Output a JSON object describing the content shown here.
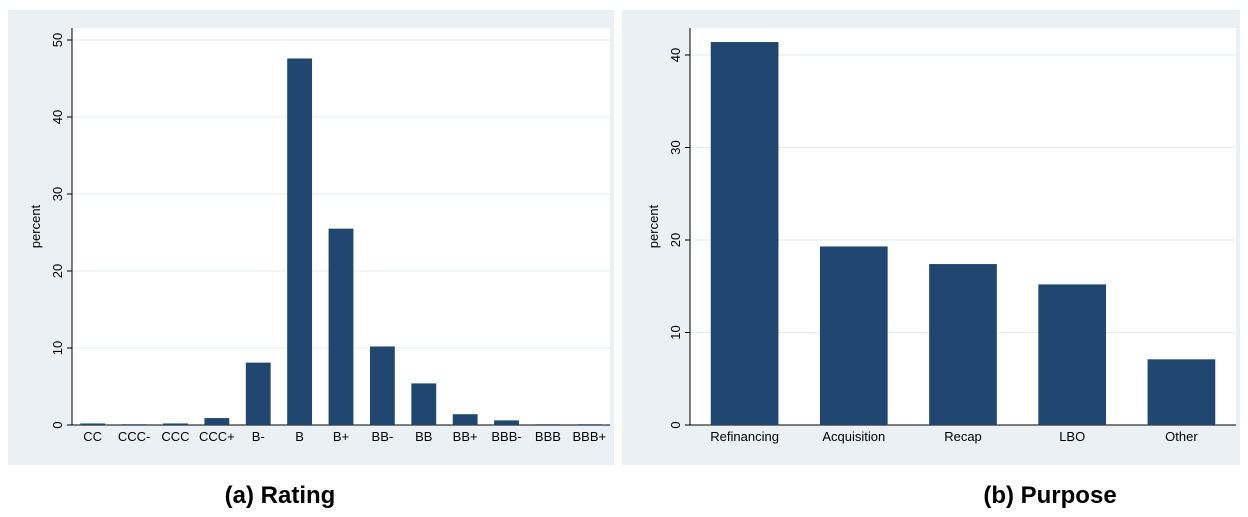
{
  "chart_data": [
    {
      "type": "bar",
      "title": "(a) Rating",
      "y_label": "percent",
      "categories": [
        "CC",
        "CCC-",
        "CCC",
        "CCC+",
        "B-",
        "B",
        "B+",
        "BB-",
        "BB",
        "BB+",
        "BBB-",
        "BBB",
        "BBB+"
      ],
      "values": [
        0.2,
        0.1,
        0.2,
        0.9,
        8.1,
        47.6,
        25.5,
        10.2,
        5.4,
        1.4,
        0.6,
        0.1,
        0.1
      ],
      "color": "#1f476f",
      "ylim": [
        0,
        50
      ],
      "yticks": [
        0,
        10,
        20,
        30,
        40,
        50
      ],
      "grid": true
    },
    {
      "type": "bar",
      "title": "(b) Purpose",
      "y_label": "percent",
      "categories": [
        "Refinancing",
        "Acquisition",
        "Recap",
        "LBO",
        "Other"
      ],
      "values": [
        41.4,
        19.3,
        17.4,
        15.2,
        7.1
      ],
      "color": "#1f476f",
      "ylim": [
        0,
        40
      ],
      "yticks": [
        0,
        10,
        20,
        30,
        40
      ],
      "grid": true
    }
  ]
}
